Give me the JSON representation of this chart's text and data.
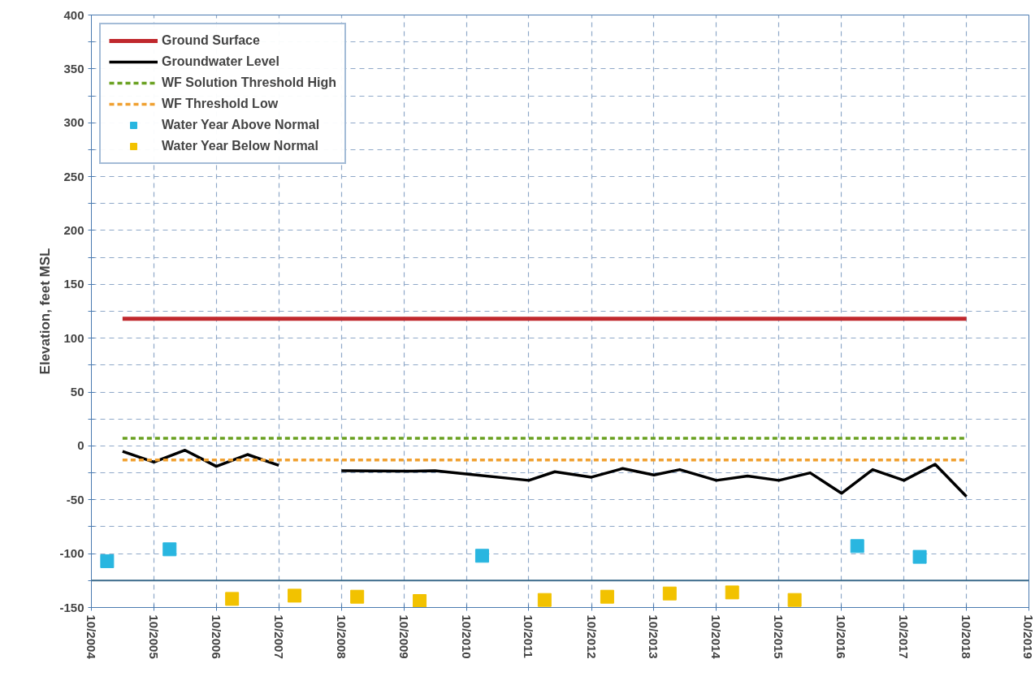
{
  "chart_data": {
    "type": "line",
    "ylabel": "Elevation, feet MSL",
    "xlim": [
      "2004-10",
      "2019-10"
    ],
    "xticks": [
      {
        "value": "2004-10",
        "label": "10/2004"
      },
      {
        "value": "2005-10",
        "label": "10/2005"
      },
      {
        "value": "2006-10",
        "label": "10/2006"
      },
      {
        "value": "2007-10",
        "label": "10/2007"
      },
      {
        "value": "2008-10",
        "label": "10/2008"
      },
      {
        "value": "2009-10",
        "label": "10/2009"
      },
      {
        "value": "2010-10",
        "label": "10/2010"
      },
      {
        "value": "2011-10",
        "label": "10/2011"
      },
      {
        "value": "2012-10",
        "label": "10/2012"
      },
      {
        "value": "2013-10",
        "label": "10/2013"
      },
      {
        "value": "2014-10",
        "label": "10/2014"
      },
      {
        "value": "2015-10",
        "label": "10/2015"
      },
      {
        "value": "2016-10",
        "label": "10/2016"
      },
      {
        "value": "2017-10",
        "label": "10/2017"
      },
      {
        "value": "2018-10",
        "label": "10/2018"
      },
      {
        "value": "2019-10",
        "label": "10/2019"
      }
    ],
    "ylim": [
      -150,
      400
    ],
    "yticks": [
      -150,
      {
        "value": -125,
        "label": null
      },
      -100,
      {
        "value": -75,
        "label": null
      },
      -50,
      {
        "value": -25,
        "label": null
      },
      0,
      {
        "value": 25,
        "label": null
      },
      50,
      {
        "value": 75,
        "label": null
      },
      100,
      {
        "value": 125,
        "label": null
      },
      150,
      {
        "value": 175,
        "label": null
      },
      200,
      {
        "value": 225,
        "label": null
      },
      250,
      {
        "value": 275,
        "label": null
      },
      300,
      {
        "value": 325,
        "label": null
      },
      350,
      {
        "value": 375,
        "label": null
      },
      400
    ],
    "grid": true,
    "legend": "top left",
    "ref_lines": [
      {
        "axis": "y",
        "value": -125,
        "label": null,
        "color": "#3a6a8a",
        "line_style": "solid"
      }
    ],
    "series": [
      {
        "name": "Ground Surface",
        "color": "#c0282d",
        "line_style": "solid",
        "x": [
          "2005-04",
          "2018-10"
        ],
        "values": [
          118,
          118
        ]
      },
      {
        "name": "Groundwater Level",
        "color": "#000000",
        "line_style": "solid",
        "x": [
          "2005-04",
          "2005-10",
          "2006-04",
          "2006-10",
          "2007-04",
          "2007-10",
          "2008-04",
          "2008-10",
          "2009-10",
          "2010-04",
          "2010-10",
          "2011-10",
          "2012-03",
          "2012-10",
          "2013-04",
          "2013-10",
          "2014-03",
          "2014-10",
          "2015-04",
          "2015-10",
          "2016-04",
          "2016-10",
          "2017-04",
          "2017-10",
          "2018-04",
          "2018-10"
        ],
        "values": [
          -5,
          -15,
          -4,
          -19,
          -8,
          -18,
          null,
          -23,
          -23.5,
          -23,
          -26,
          -32,
          -24,
          -29,
          -21,
          -27,
          -22,
          -32,
          -28,
          -32,
          -25,
          -44,
          -22,
          -32,
          -17,
          -47
        ]
      },
      {
        "name": "WF Solution Threshold High",
        "color": "#6aa121",
        "line_style": "dashed",
        "x": [
          "2005-04",
          "2018-10"
        ],
        "values": [
          7,
          7
        ]
      },
      {
        "name": "WF Threshold Low",
        "color": "#f0a030",
        "line_style": "dashed",
        "x": [
          "2005-04",
          "2018-10"
        ],
        "values": [
          -13,
          -13
        ]
      },
      {
        "name": "Water Year Above Normal",
        "type": "scatter",
        "marker": "square",
        "color": "#29b6e0",
        "x": [
          "2005-01",
          "2006-01",
          "2011-01",
          "2017-01",
          "2018-01"
        ],
        "values": [
          -107,
          -96,
          -102,
          -93,
          -103
        ]
      },
      {
        "name": "Water Year Below Normal",
        "type": "scatter",
        "marker": "square",
        "color": "#f2c200",
        "x": [
          "2007-01",
          "2008-01",
          "2009-01",
          "2010-01",
          "2012-01",
          "2013-01",
          "2014-01",
          "2015-01",
          "2016-01"
        ],
        "values": [
          -142,
          -139,
          -140,
          -144,
          -143,
          -140,
          -137,
          -136,
          -143
        ]
      }
    ]
  }
}
